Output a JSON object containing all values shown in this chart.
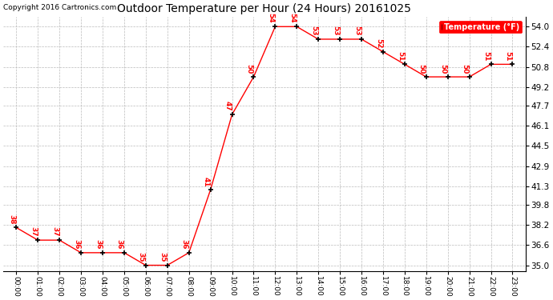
{
  "title": "Outdoor Temperature per Hour (24 Hours) 20161025",
  "copyright_text": "Copyright 2016 Cartronics.com",
  "legend_label": "Temperature (°F)",
  "hours": [
    "00:00",
    "01:00",
    "02:00",
    "03:00",
    "04:00",
    "05:00",
    "06:00",
    "07:00",
    "08:00",
    "09:00",
    "10:00",
    "11:00",
    "12:00",
    "13:00",
    "14:00",
    "15:00",
    "16:00",
    "17:00",
    "18:00",
    "19:00",
    "20:00",
    "21:00",
    "22:00",
    "23:00"
  ],
  "temperatures": [
    38,
    37,
    37,
    36,
    36,
    36,
    35,
    35,
    36,
    41,
    47,
    50,
    54,
    54,
    53,
    53,
    53,
    52,
    51,
    50,
    50,
    50,
    51,
    51
  ],
  "line_color": "red",
  "marker_color": "black",
  "marker_size": 5,
  "label_color": "red",
  "label_fontsize": 6.5,
  "background_color": "white",
  "grid_color": "#bbbbbb",
  "title_fontsize": 10,
  "copyright_fontsize": 6.5,
  "yticks": [
    35.0,
    36.6,
    38.2,
    39.8,
    41.3,
    42.9,
    44.5,
    46.1,
    47.7,
    49.2,
    50.8,
    52.4,
    54.0
  ],
  "ylim": [
    34.5,
    54.8
  ],
  "xlim": [
    -0.6,
    23.6
  ]
}
